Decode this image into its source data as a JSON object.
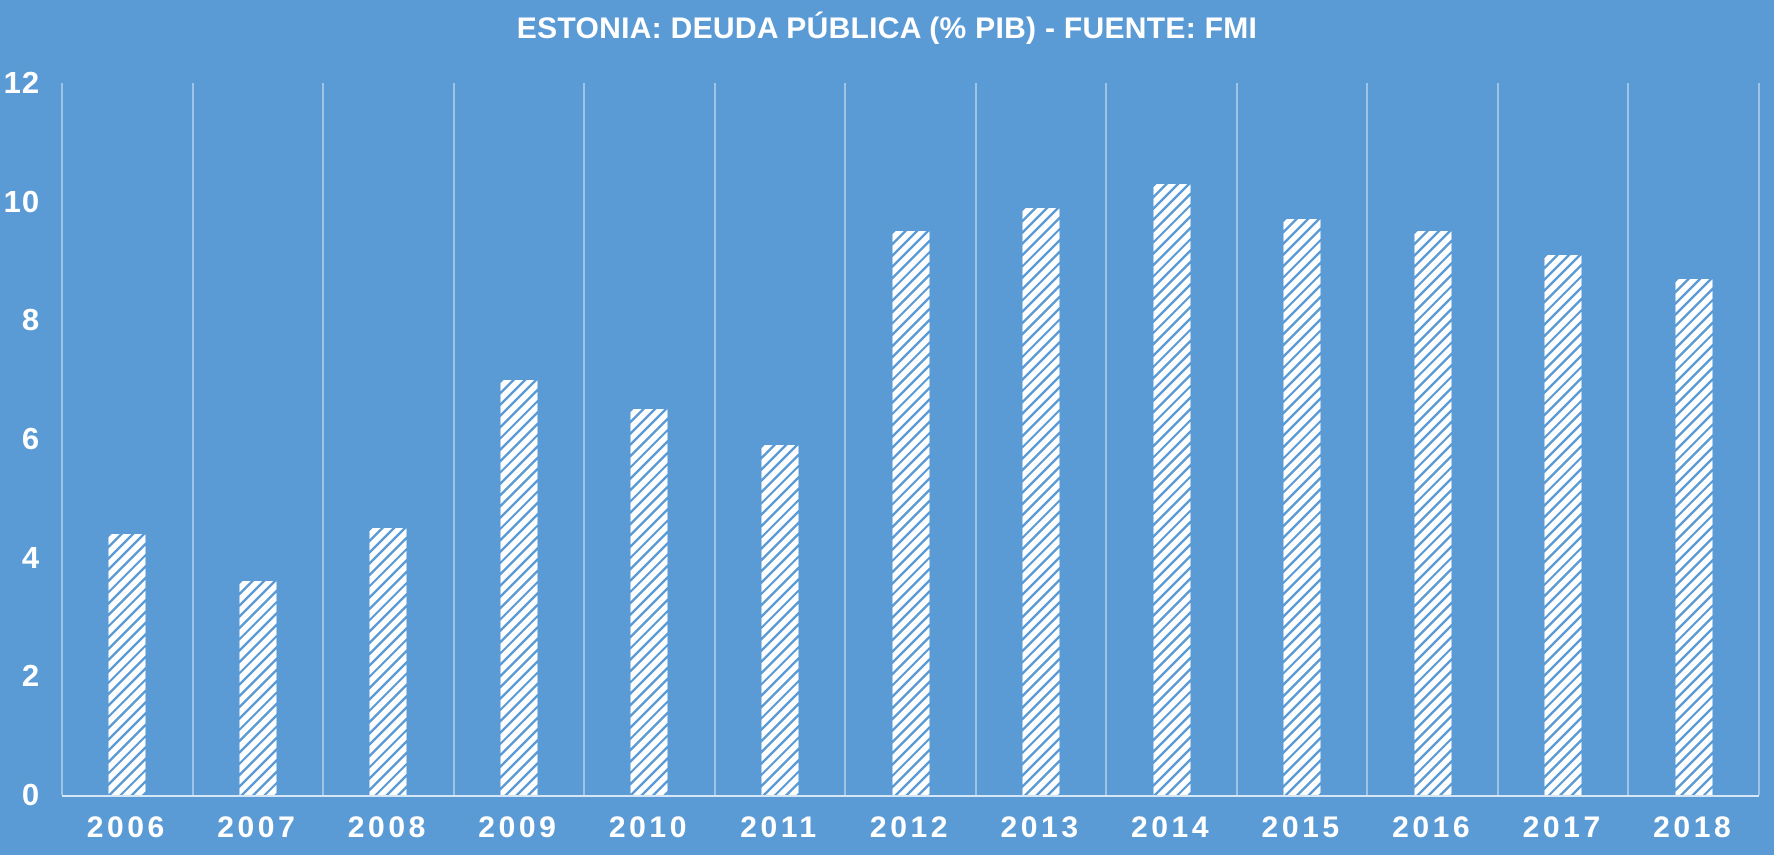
{
  "colors": {
    "background": "#5b9bd5",
    "bar_fill": "#ffffff",
    "bar_hatch": "#5b9bd5",
    "text": "#ffffff",
    "gridline": "rgba(255,255,255,0.42)",
    "axis_line": "rgba(255,255,255,0.75)"
  },
  "chart_data": {
    "type": "bar",
    "title": "ESTONIA: DEUDA PÚBLICA (% PIB) - FUENTE: FMI",
    "categories": [
      "2006",
      "2007",
      "2008",
      "2009",
      "2010",
      "2011",
      "2012",
      "2013",
      "2014",
      "2015",
      "2016",
      "2017",
      "2018"
    ],
    "values": [
      4.4,
      3.6,
      4.5,
      7.0,
      6.5,
      5.9,
      9.5,
      9.9,
      10.3,
      9.7,
      9.5,
      9.1,
      8.7
    ],
    "xlabel": "",
    "ylabel": "",
    "ylim": [
      0,
      12
    ],
    "yticks": [
      0,
      2,
      4,
      6,
      8,
      10,
      12
    ],
    "grid": "vertical-category-boundaries",
    "legend": "none",
    "bar_pattern": "white-with-diagonal-hatch"
  }
}
